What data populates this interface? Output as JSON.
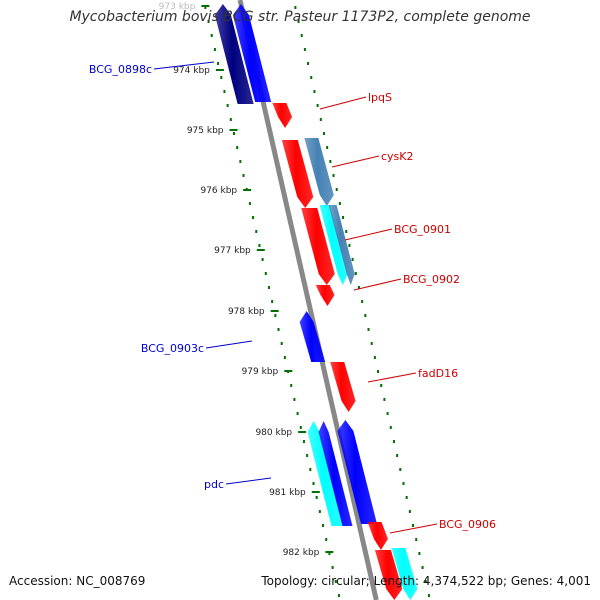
{
  "title": "Mycobacterium bovis BCG str. Pasteur 1173P2, complete genome",
  "accession": "Accession: NC_008769",
  "topology_text": "Topology: circular; Length: 4,374,522 bp; Genes: 4,001",
  "colors": {
    "backbone": "#888888",
    "forward": "#ff0000",
    "reverse": "#0000ff",
    "dark_blue": "#000080",
    "steel_blue": "#4682b4",
    "cyan": "#00ffff",
    "tick": "#007000",
    "forward_label": "#cc0000",
    "reverse_label": "#0000cc"
  },
  "kbp_ticks": [
    {
      "label": "973 kbp",
      "faded": true
    },
    {
      "label": "974 kbp"
    },
    {
      "label": "975 kbp"
    },
    {
      "label": "976 kbp"
    },
    {
      "label": "977 kbp"
    },
    {
      "label": "978 kbp"
    },
    {
      "label": "979 kbp"
    },
    {
      "label": "980 kbp"
    },
    {
      "label": "981 kbp"
    },
    {
      "label": "982 kbp"
    }
  ],
  "gene_labels": [
    {
      "name": "BCG_0898c",
      "strand": "reverse"
    },
    {
      "name": "lpqS",
      "strand": "forward"
    },
    {
      "name": "cysK2",
      "strand": "forward"
    },
    {
      "name": "BCG_0901",
      "strand": "forward"
    },
    {
      "name": "BCG_0902",
      "strand": "forward"
    },
    {
      "name": "BCG_0903c",
      "strand": "reverse"
    },
    {
      "name": "fadD16",
      "strand": "forward"
    },
    {
      "name": "pdc",
      "strand": "reverse"
    },
    {
      "name": "BCG_0906",
      "strand": "forward"
    }
  ]
}
